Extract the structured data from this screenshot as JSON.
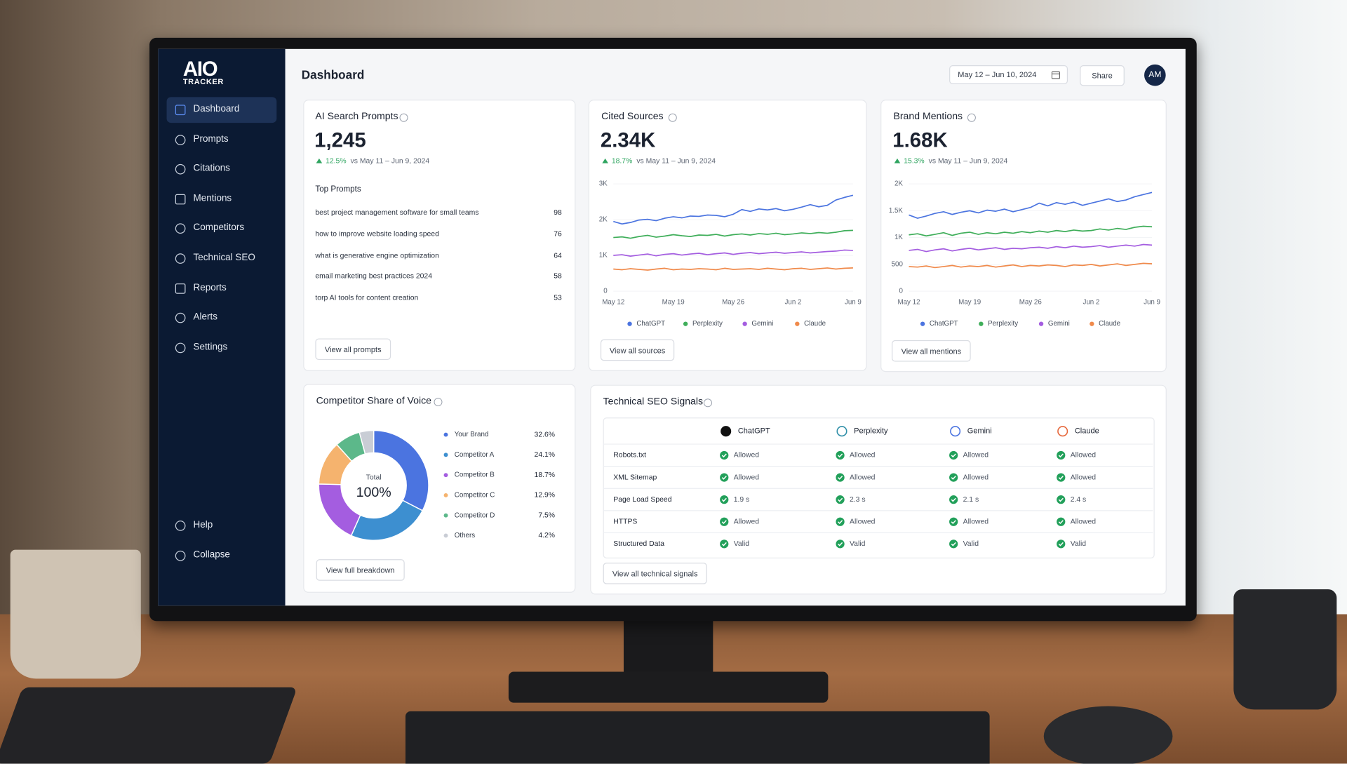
{
  "sidebar": {
    "logo": "AIO",
    "logo_sub": "TRACKER",
    "nav": [
      "Dashboard",
      "Prompts",
      "Citations",
      "Mentions",
      "Competitors",
      "Technical SEO",
      "Reports",
      "Alerts",
      "Settings"
    ],
    "footer": [
      "Help",
      "Collapse"
    ]
  },
  "header": {
    "title": "Dashboard",
    "date_range": "May 12 – Jun 10, 2024",
    "share": "Share",
    "avatar": "AM"
  },
  "prompts_card": {
    "title": "AI Search Prompts",
    "value": "1,245",
    "change": "12.5%",
    "compare": "vs May 11 – Jun 9, 2024",
    "list_title": "Top Prompts",
    "rows": [
      {
        "text": "best project management software for small teams",
        "count": 98
      },
      {
        "text": "how to improve website loading speed",
        "count": 76
      },
      {
        "text": "what is generative engine optimization",
        "count": 64
      },
      {
        "text": "email marketing best practices 2024",
        "count": 58
      },
      {
        "text": "torp AI tools for content creation",
        "count": 53
      }
    ],
    "button": "View all prompts"
  },
  "sources_card": {
    "title": "Cited Sources",
    "value": "2.34K",
    "change": "18.7%",
    "compare": "vs May 11 – Jun 9, 2024",
    "button": "View all sources",
    "chart_data": {
      "type": "line",
      "categories": [
        "May 12",
        null,
        null,
        null,
        null,
        null,
        null,
        "May 19",
        null,
        null,
        null,
        null,
        null,
        null,
        "May 26",
        null,
        null,
        null,
        null,
        null,
        null,
        "Jun 2",
        null,
        null,
        null,
        null,
        null,
        null,
        "Jun 9"
      ],
      "series": [
        {
          "name": "ChatGPT",
          "color": "#4b74e0",
          "values": [
            1950,
            1880,
            1920,
            1990,
            2010,
            1970,
            2040,
            2080,
            2050,
            2100,
            2090,
            2130,
            2120,
            2080,
            2150,
            2280,
            2230,
            2300,
            2270,
            2310,
            2250,
            2290,
            2350,
            2420,
            2360,
            2400,
            2550,
            2620,
            2680
          ]
        },
        {
          "name": "Perplexity",
          "color": "#3fae5a",
          "values": [
            1500,
            1520,
            1480,
            1530,
            1560,
            1510,
            1540,
            1580,
            1550,
            1530,
            1570,
            1560,
            1590,
            1540,
            1580,
            1600,
            1570,
            1610,
            1590,
            1620,
            1580,
            1600,
            1630,
            1610,
            1640,
            1620,
            1650,
            1690,
            1700
          ]
        },
        {
          "name": "Gemini",
          "color": "#a45de0",
          "values": [
            1000,
            1020,
            980,
            1010,
            1040,
            990,
            1030,
            1050,
            1010,
            1040,
            1060,
            1020,
            1050,
            1070,
            1030,
            1060,
            1080,
            1050,
            1070,
            1090,
            1060,
            1080,
            1100,
            1070,
            1090,
            1110,
            1120,
            1150,
            1140
          ]
        },
        {
          "name": "Claude",
          "color": "#f08a4b",
          "values": [
            620,
            600,
            630,
            610,
            590,
            620,
            640,
            600,
            620,
            610,
            630,
            620,
            600,
            640,
            610,
            620,
            630,
            610,
            640,
            620,
            600,
            630,
            640,
            610,
            630,
            650,
            620,
            640,
            650
          ]
        }
      ],
      "ylim": [
        0,
        3000
      ],
      "yticks": [
        0,
        {
          "value": 1000,
          "label": "1K"
        },
        {
          "value": 2000,
          "label": "2K"
        },
        {
          "value": 3000,
          "label": "3K"
        }
      ],
      "grid": true
    }
  },
  "mentions_card": {
    "title": "Brand Mentions",
    "value": "1.68K",
    "change": "15.3%",
    "compare": "vs May 11 – Jun 9, 2024",
    "button": "View all mentions",
    "chart_data": {
      "type": "line",
      "categories": [
        "May 12",
        null,
        null,
        null,
        null,
        null,
        null,
        "May 19",
        null,
        null,
        null,
        null,
        null,
        null,
        "May 26",
        null,
        null,
        null,
        null,
        null,
        null,
        "Jun 2",
        null,
        null,
        null,
        null,
        null,
        null,
        "Jun 9"
      ],
      "series": [
        {
          "name": "ChatGPT",
          "color": "#4b74e0",
          "values": [
            1420,
            1360,
            1400,
            1450,
            1480,
            1430,
            1470,
            1500,
            1460,
            1510,
            1490,
            1530,
            1480,
            1520,
            1560,
            1640,
            1590,
            1650,
            1620,
            1660,
            1600,
            1640,
            1680,
            1720,
            1670,
            1700,
            1760,
            1800,
            1840
          ]
        },
        {
          "name": "Perplexity",
          "color": "#3fae5a",
          "values": [
            1050,
            1070,
            1030,
            1060,
            1090,
            1040,
            1080,
            1100,
            1060,
            1090,
            1070,
            1100,
            1080,
            1110,
            1090,
            1120,
            1100,
            1130,
            1110,
            1140,
            1120,
            1130,
            1160,
            1140,
            1170,
            1150,
            1190,
            1210,
            1200
          ]
        },
        {
          "name": "Gemini",
          "color": "#a45de0",
          "values": [
            760,
            780,
            740,
            770,
            790,
            750,
            780,
            800,
            770,
            790,
            810,
            780,
            800,
            790,
            810,
            820,
            800,
            830,
            810,
            840,
            820,
            830,
            850,
            820,
            840,
            860,
            840,
            870,
            860
          ]
        },
        {
          "name": "Claude",
          "color": "#f08a4b",
          "values": [
            460,
            450,
            470,
            440,
            460,
            480,
            450,
            470,
            460,
            480,
            450,
            470,
            490,
            460,
            480,
            470,
            490,
            480,
            460,
            490,
            480,
            500,
            470,
            490,
            510,
            480,
            500,
            520,
            510
          ]
        }
      ],
      "ylim": [
        0,
        2000
      ],
      "yticks": [
        0,
        500,
        {
          "value": 1000,
          "label": "1K"
        },
        {
          "value": 1500,
          "label": "1.5K"
        },
        {
          "value": 2000,
          "label": "2K"
        }
      ],
      "grid": true
    }
  },
  "share_card": {
    "title": "Competitor Share of Voice",
    "center_label": "Total",
    "center_value": "100%",
    "button": "View full breakdown",
    "chart_data": {
      "type": "pie",
      "categories": [
        "Your Brand",
        "Competitor A",
        "Competitor B",
        "Competitor C",
        "Competitor D",
        "Others"
      ],
      "values": [
        32.6,
        24.1,
        18.7,
        12.9,
        7.5,
        4.2
      ],
      "value_labels": [
        "32.6%",
        "24.1%",
        "18.7%",
        "12.9%",
        "7.5%",
        "4.2%"
      ],
      "colors": [
        "#4b74e0",
        "#3d8fd0",
        "#a45de0",
        "#f5b36e",
        "#5cb88a",
        "#c9cdd5"
      ]
    }
  },
  "seo_card": {
    "title": "Technical SEO Signals",
    "columns": [
      "ChatGPT",
      "Perplexity",
      "Gemini",
      "Claude"
    ],
    "rows": [
      {
        "label": "Robots.txt",
        "cells": [
          "Allowed",
          "Allowed",
          "Allowed",
          "Allowed"
        ]
      },
      {
        "label": "XML Sitemap",
        "cells": [
          "Allowed",
          "Allowed",
          "Allowed",
          "Allowed"
        ]
      },
      {
        "label": "Page Load Speed",
        "cells": [
          "1.9 s",
          "2.3 s",
          "2.1 s",
          "2.4 s"
        ]
      },
      {
        "label": "HTTPS",
        "cells": [
          "Allowed",
          "Allowed",
          "Allowed",
          "Allowed"
        ]
      },
      {
        "label": "Structured Data",
        "cells": [
          "Valid",
          "Valid",
          "Valid",
          "Valid"
        ]
      }
    ],
    "button": "View all technical signals"
  }
}
